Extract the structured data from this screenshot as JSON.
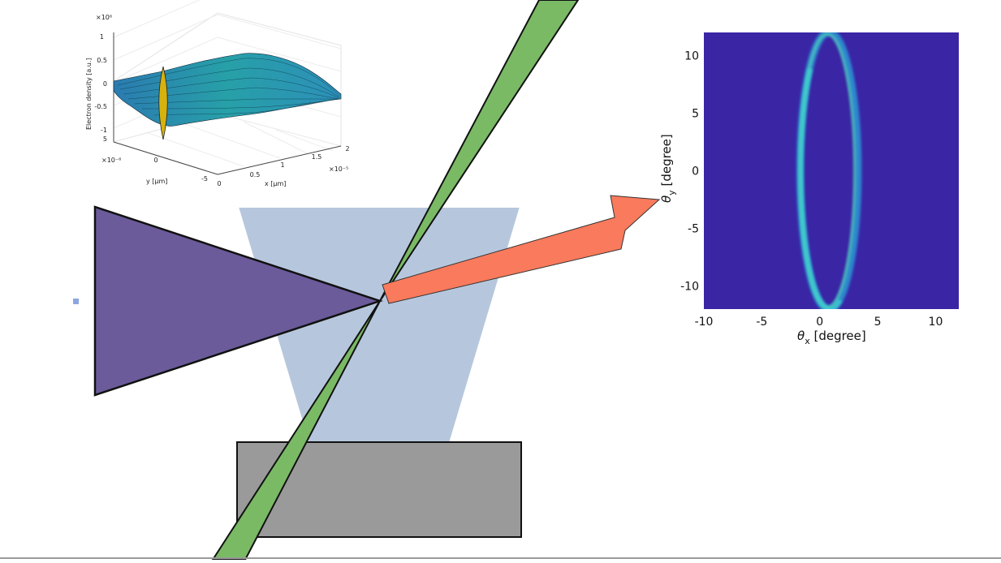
{
  "surface_plot": {
    "zlabel": "Electron density [a.u.]",
    "z_exponent": "×10⁶",
    "z_ticks": [
      "1",
      "0.5",
      "0",
      "-0.5",
      "-1"
    ],
    "ylabel": "y [μm]",
    "y_exponent": "×10⁻⁶",
    "y_ticks": [
      "5",
      "0",
      "-5"
    ],
    "xlabel": "x [μm]",
    "x_exponent": "×10⁻⁵",
    "x_ticks": [
      "0",
      "0.5",
      "1",
      "1.5",
      "2"
    ]
  },
  "colors": {
    "laser_beam": "#6b5b9a",
    "plasma_cone": "#b6c7dd",
    "electron_beam": "#7aba65",
    "emission_arrow": "#f97a5c",
    "target_block": "#9a9a9a",
    "detector_background": "#3a25a5",
    "ring_color": "#3cc0e0"
  },
  "chart_data": {
    "type": "heatmap",
    "title": "",
    "xlabel": "θx [degree]",
    "ylabel": "θy [degree]",
    "xlabel_main": "θ",
    "xlabel_sub": "x",
    "xlabel_unit": " [degree]",
    "ylabel_main": "θ",
    "ylabel_sub": "y",
    "ylabel_unit": " [degree]",
    "xlim": [
      -10,
      12
    ],
    "ylim": [
      -12,
      12
    ],
    "x_ticks": [
      -10,
      -5,
      0,
      5,
      10
    ],
    "y_ticks": [
      10,
      5,
      0,
      -5,
      -10
    ],
    "x_tick_labels": [
      "-10",
      "-5",
      "0",
      "5",
      "10"
    ],
    "y_tick_labels": [
      "10",
      "5",
      "0",
      "-5",
      "-10"
    ],
    "ring": {
      "center_x": 0.8,
      "center_y": 0,
      "radius_x": 2.5,
      "radius_y": 12
    }
  }
}
